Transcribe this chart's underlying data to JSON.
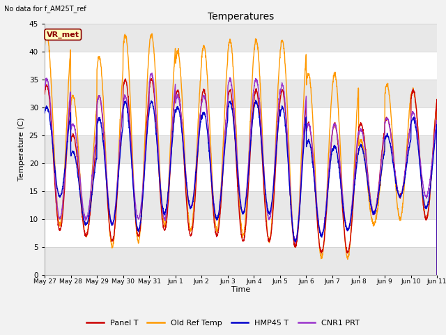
{
  "title": "Temperatures",
  "ylabel": "Temperature (C)",
  "xlabel": "Time",
  "top_left_text": "No data for f_AM25T_ref",
  "box_label": "VR_met",
  "ylim": [
    0,
    45
  ],
  "yticks": [
    0,
    5,
    10,
    15,
    20,
    25,
    30,
    35,
    40,
    45
  ],
  "xtick_labels": [
    "May 27",
    "May 28",
    "May 29",
    "May 30",
    "May 31",
    "Jun 1",
    "Jun 2",
    "Jun 3",
    "Jun 4",
    "Jun 5",
    "Jun 6",
    "Jun 7",
    "Jun 8",
    "Jun 9",
    "Jun 10",
    "Jun 11"
  ],
  "panel_color": "#cc0000",
  "oldref_color": "#ff9900",
  "hmp45_color": "#0000cc",
  "cnr1_color": "#9933cc",
  "fig_bg": "#f2f2f2",
  "plot_bg": "#e8e8e8",
  "band_color": "#d8d8d8",
  "n_days": 15,
  "panel_min": [
    8,
    7,
    6,
    7,
    8,
    7,
    7,
    6,
    6,
    5,
    4,
    4,
    11,
    14,
    10
  ],
  "panel_max": [
    34,
    25,
    32,
    35,
    35,
    33,
    33,
    33,
    33,
    33,
    27,
    27,
    27,
    28,
    33
  ],
  "oldref_min": [
    9,
    7,
    5,
    6,
    9,
    8,
    8,
    7,
    6,
    5,
    3,
    3,
    9,
    10,
    10
  ],
  "oldref_max": [
    43,
    32,
    39,
    43,
    43,
    40,
    41,
    42,
    42,
    42,
    36,
    36,
    24,
    34,
    33
  ],
  "hmp45_min": [
    14,
    9,
    9,
    8,
    11,
    12,
    10,
    11,
    11,
    6,
    7,
    8,
    11,
    14,
    12
  ],
  "hmp45_max": [
    30,
    22,
    28,
    31,
    31,
    30,
    29,
    31,
    31,
    30,
    24,
    23,
    23,
    25,
    28
  ],
  "cnr1_min": [
    10,
    10,
    9,
    10,
    10,
    12,
    10,
    11,
    10,
    6,
    7,
    8,
    11,
    14,
    14
  ],
  "cnr1_max": [
    35,
    27,
    32,
    32,
    36,
    32,
    32,
    35,
    35,
    34,
    27,
    27,
    26,
    28,
    29
  ]
}
